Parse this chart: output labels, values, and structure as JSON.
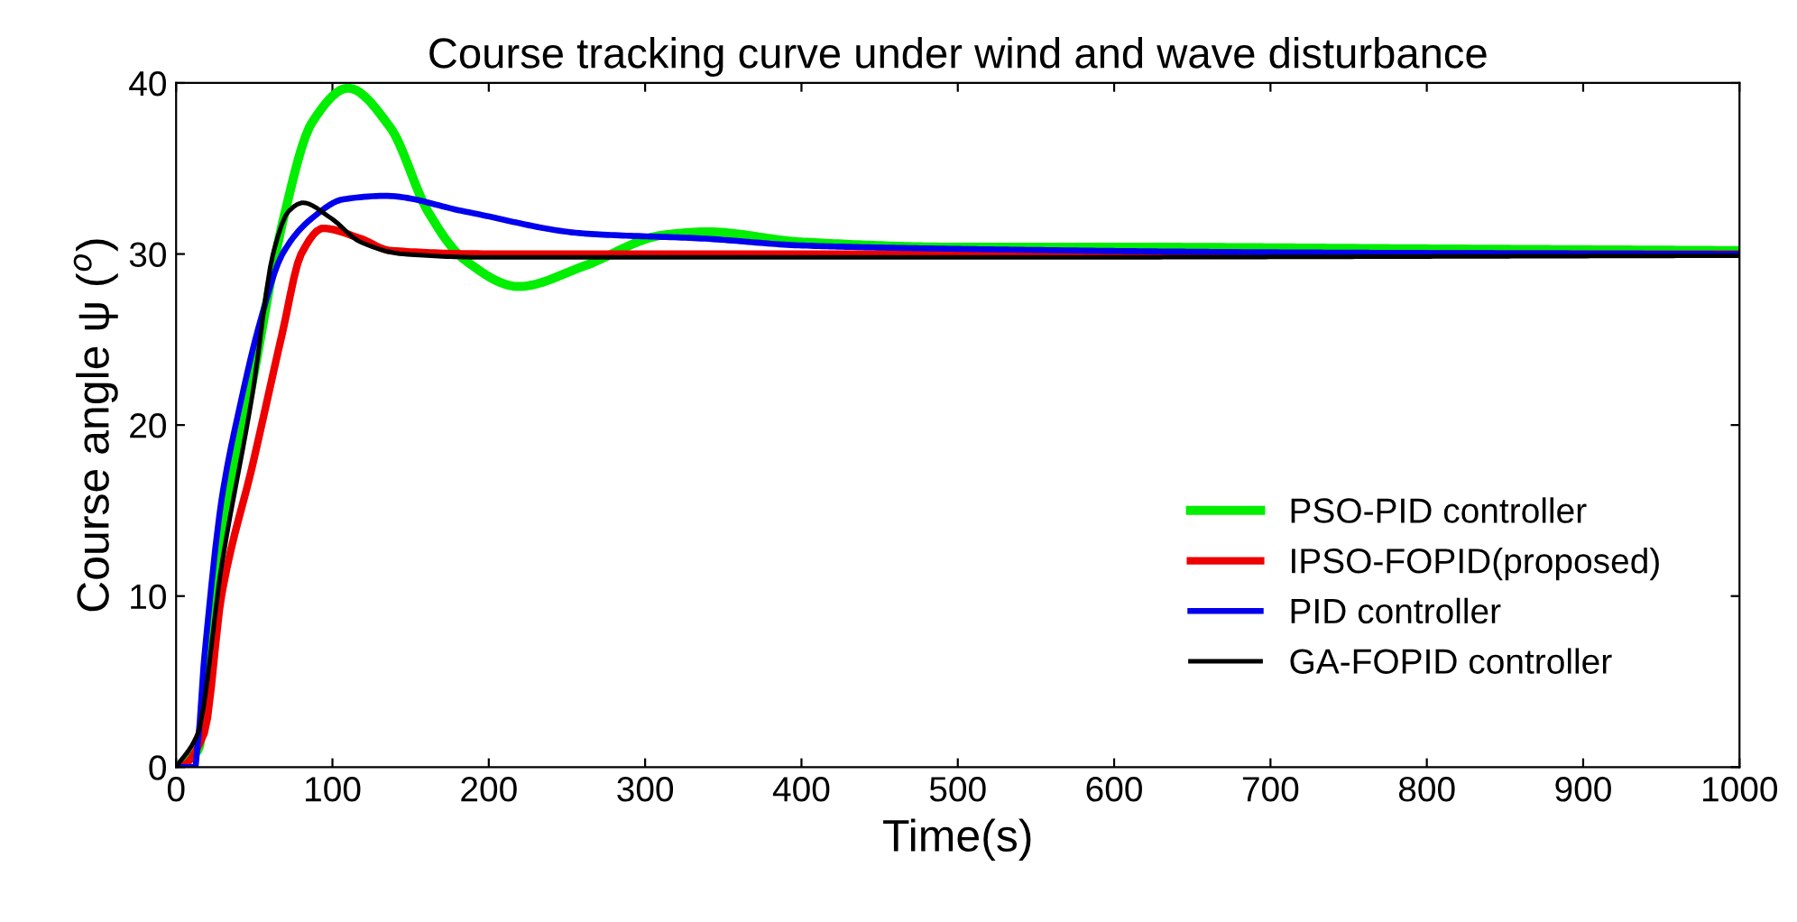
{
  "chart_data": {
    "type": "line",
    "title": "Course tracking curve under wind and wave disturbance",
    "xlabel": "Time(s)",
    "ylabel": "Course angle ψ ($^{o}$)",
    "xlim": [
      0,
      1000
    ],
    "ylim": [
      0,
      40
    ],
    "xticks": [
      0,
      100,
      200,
      300,
      400,
      500,
      600,
      700,
      800,
      900,
      1000
    ],
    "yticks": [
      0,
      10,
      20,
      30,
      40
    ],
    "grid": false,
    "legend": "bottom right",
    "marker": "none",
    "line_style": "solid",
    "series": [
      {
        "name": "PSO-PID controller",
        "color": "#00ee00",
        "x": [
          0,
          14,
          29,
          49,
          68,
          87,
          110,
          137,
          161,
          184,
          219,
          261,
          311,
          340,
          400,
          500,
          600,
          800,
          1000
        ],
        "values": [
          0,
          1,
          13.5,
          22.6,
          31.8,
          37.7,
          39.7,
          37.4,
          32.5,
          29.7,
          28.1,
          29.3,
          31.1,
          31.3,
          30.7,
          30.4,
          30.4,
          30.3,
          30.2
        ]
      },
      {
        "name": "IPSO-FOPID(proposed)",
        "color": "#ee0000",
        "x": [
          0,
          2,
          18,
          29,
          49,
          68,
          80,
          94,
          118,
          137,
          200,
          400,
          1000
        ],
        "values": [
          0,
          0,
          2,
          10,
          17.7,
          25.4,
          30,
          31.5,
          30.9,
          30.2,
          30.0,
          30.0,
          30.0
        ]
      },
      {
        "name": "PID controller",
        "color": "#0000ee",
        "x": [
          0,
          12,
          18,
          29,
          41,
          53,
          68,
          87,
          107,
          134,
          184,
          261,
          338,
          400,
          500,
          700,
          1000
        ],
        "values": [
          0,
          0,
          6.4,
          15.6,
          21.2,
          25.8,
          30,
          32.1,
          33.2,
          33.4,
          32.5,
          31.2,
          30.9,
          30.5,
          30.3,
          30.1,
          30.0
        ]
      },
      {
        "name": "GA-FOPID controller",
        "color": "#000000",
        "x": [
          0,
          14,
          29,
          49,
          62,
          72,
          81,
          99,
          118,
          145,
          200,
          500,
          1000
        ],
        "values": [
          0,
          2,
          11.7,
          21.9,
          30,
          32.5,
          33.0,
          32.1,
          30.7,
          30,
          29.8,
          29.8,
          29.9
        ]
      }
    ]
  }
}
